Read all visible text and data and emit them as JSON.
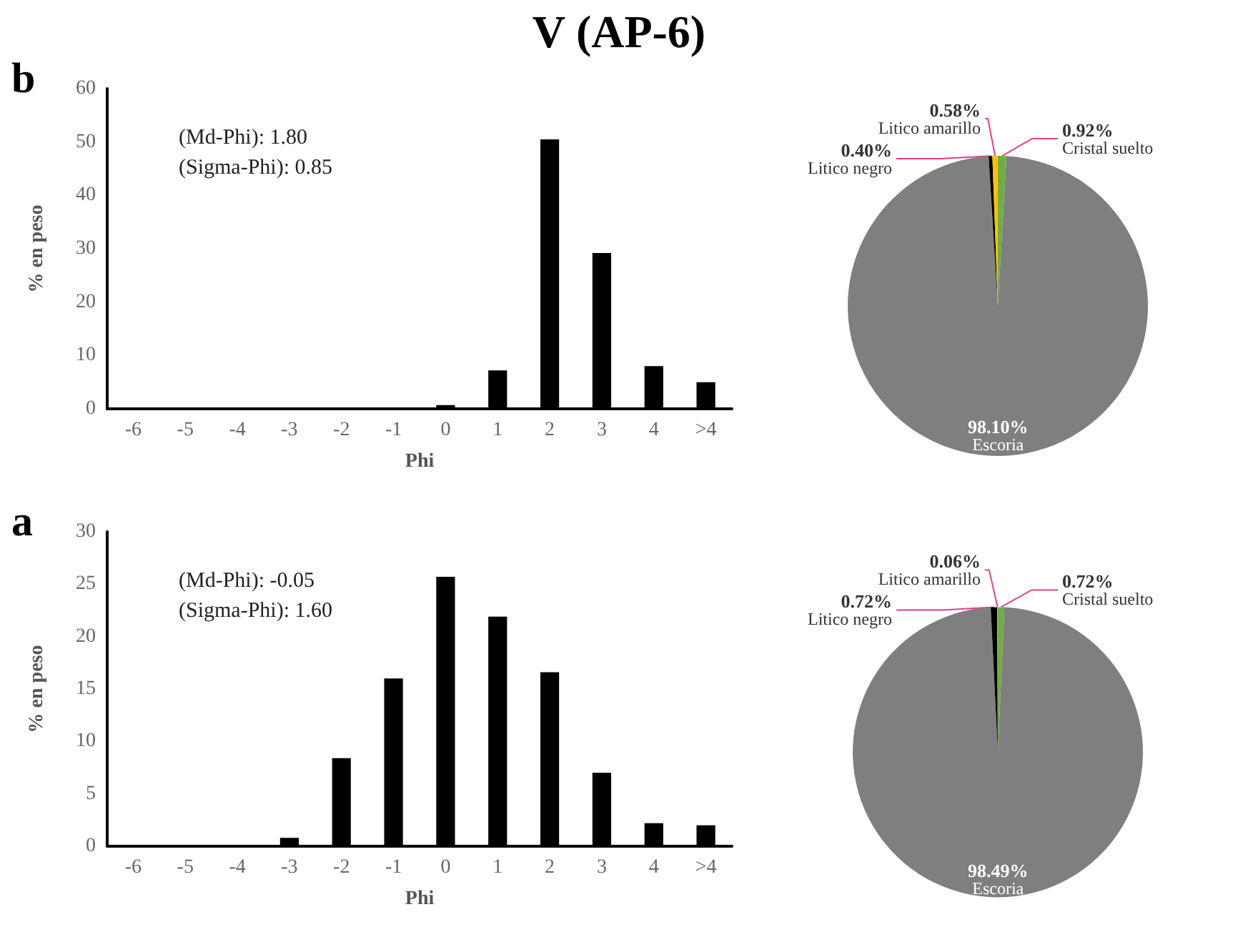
{
  "chart_data": [
    {
      "type": "bar",
      "title": "V (AP-6)",
      "xlabel": "Phi",
      "ylabel": "% en peso",
      "annotations": [
        "b",
        "(Md-Phi): 1.80",
        "(Sigma-Phi): 0.85"
      ],
      "categories": [
        "-6",
        "-5",
        "-4",
        "-3",
        "-2",
        "-1",
        "0",
        "1",
        "2",
        "3",
        "4",
        ">4"
      ],
      "values": [
        0,
        0,
        0,
        0,
        0,
        0,
        0.7,
        7.2,
        50.5,
        29.2,
        8.0,
        5.0
      ],
      "color": "#000000",
      "ylim": [
        0,
        60
      ],
      "yticks": [
        0,
        10,
        20,
        30,
        40,
        50,
        60
      ],
      "grid": false
    },
    {
      "type": "pie",
      "categories": [
        "Cristal suelto",
        "Escoria",
        "Litico negro",
        "Litico amarillo"
      ],
      "values": [
        0.92,
        98.1,
        0.4,
        0.58
      ],
      "value_labels": [
        "0.92%",
        "98.10%",
        "0.40%",
        "0.58%"
      ],
      "colors": [
        "#70ad47",
        "#7f7f7f",
        "#000000",
        "#ffc000"
      ]
    },
    {
      "type": "bar",
      "xlabel": "Phi",
      "ylabel": "% en peso",
      "annotations": [
        "a",
        "(Md-Phi): -0.05",
        "(Sigma-Phi): 1.60"
      ],
      "categories": [
        "-6",
        "-5",
        "-4",
        "-3",
        "-2",
        "-1",
        "0",
        "1",
        "2",
        "3",
        "4",
        ">4"
      ],
      "values": [
        0,
        0,
        0,
        0.8,
        8.4,
        16.0,
        25.7,
        21.9,
        16.6,
        7.0,
        2.2,
        2.0
      ],
      "color": "#000000",
      "ylim": [
        0,
        30
      ],
      "yticks": [
        0,
        5,
        10,
        15,
        20,
        25,
        30
      ],
      "grid": false
    },
    {
      "type": "pie",
      "categories": [
        "Cristal suelto",
        "Escoria",
        "Litico negro",
        "Litico amarillo"
      ],
      "values": [
        0.72,
        98.49,
        0.72,
        0.06
      ],
      "value_labels": [
        "0.72%",
        "98.49%",
        "0.72%",
        "0.06%"
      ],
      "colors": [
        "#70ad47",
        "#7f7f7f",
        "#000000",
        "#ffc000"
      ]
    }
  ]
}
